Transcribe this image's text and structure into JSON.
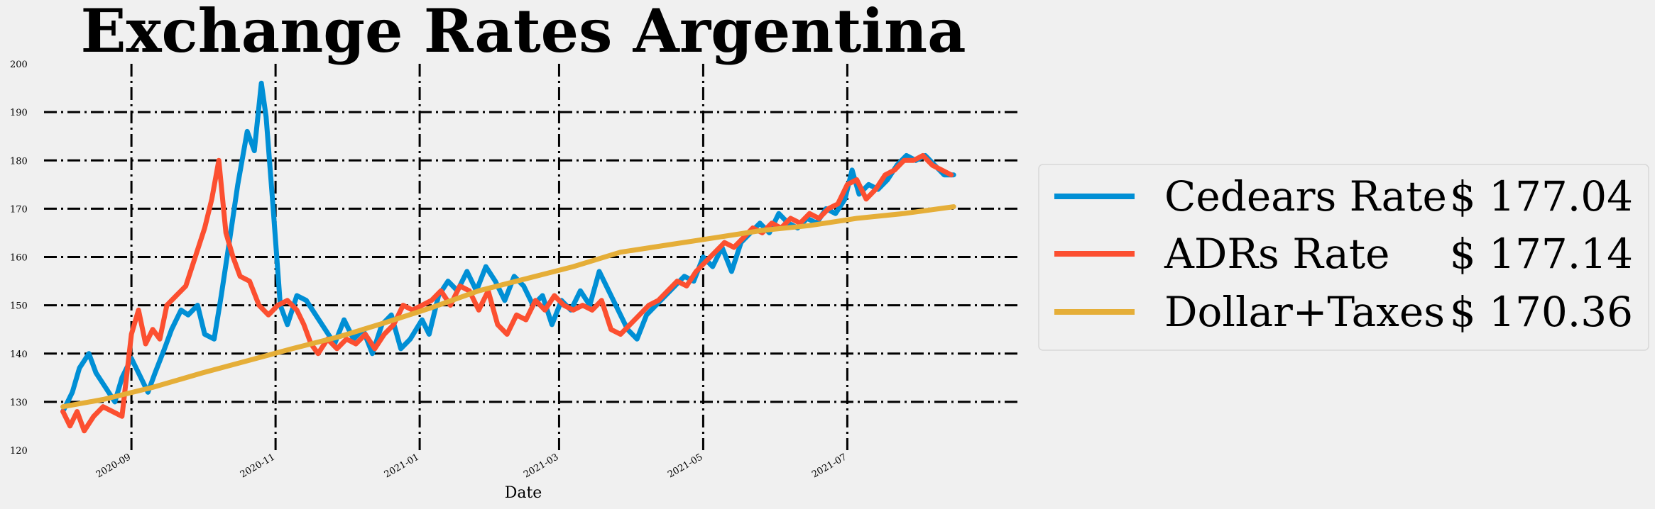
{
  "chart_data": {
    "type": "line",
    "title": "Exchange Rates Argentina",
    "xlabel": "Date",
    "ylabel": "",
    "ylim": [
      120,
      200
    ],
    "xlim": [
      "2020-07-26",
      "2021-09-11"
    ],
    "yticks": [
      120,
      130,
      140,
      150,
      160,
      170,
      180,
      190,
      200
    ],
    "xticks": [
      "2020-09",
      "2020-11",
      "2021-01",
      "2021-03",
      "2021-05",
      "2021-07"
    ],
    "grid": true,
    "legend_position": "right",
    "series": [
      {
        "name": "Cedears Rate",
        "legend_value": "$ 177.04",
        "color": "#008fd5",
        "points": [
          [
            "2020-08-03",
            128
          ],
          [
            "2020-08-07",
            132
          ],
          [
            "2020-08-10",
            137
          ],
          [
            "2020-08-14",
            140
          ],
          [
            "2020-08-17",
            136
          ],
          [
            "2020-08-21",
            133
          ],
          [
            "2020-08-25",
            130
          ],
          [
            "2020-08-28",
            135
          ],
          [
            "2020-09-01",
            139
          ],
          [
            "2020-09-04",
            136
          ],
          [
            "2020-09-08",
            132
          ],
          [
            "2020-09-11",
            136
          ],
          [
            "2020-09-15",
            141
          ],
          [
            "2020-09-18",
            145
          ],
          [
            "2020-09-22",
            149
          ],
          [
            "2020-09-25",
            148
          ],
          [
            "2020-09-29",
            150
          ],
          [
            "2020-10-02",
            144
          ],
          [
            "2020-10-06",
            143
          ],
          [
            "2020-10-09",
            152
          ],
          [
            "2020-10-13",
            165
          ],
          [
            "2020-10-16",
            175
          ],
          [
            "2020-10-20",
            186
          ],
          [
            "2020-10-23",
            182
          ],
          [
            "2020-10-26",
            196
          ],
          [
            "2020-10-28",
            189
          ],
          [
            "2020-10-31",
            170
          ],
          [
            "2020-11-03",
            150
          ],
          [
            "2020-11-06",
            146
          ],
          [
            "2020-11-10",
            152
          ],
          [
            "2020-11-14",
            151
          ],
          [
            "2020-11-18",
            148
          ],
          [
            "2020-11-22",
            145
          ],
          [
            "2020-11-26",
            142
          ],
          [
            "2020-11-30",
            147
          ],
          [
            "2020-12-04",
            143
          ],
          [
            "2020-12-08",
            145
          ],
          [
            "2020-12-12",
            140
          ],
          [
            "2020-12-16",
            146
          ],
          [
            "2020-12-20",
            148
          ],
          [
            "2020-12-24",
            141
          ],
          [
            "2020-12-28",
            143
          ],
          [
            "2021-01-02",
            147
          ],
          [
            "2021-01-05",
            144
          ],
          [
            "2021-01-09",
            152
          ],
          [
            "2021-01-13",
            155
          ],
          [
            "2021-01-17",
            153
          ],
          [
            "2021-01-21",
            157
          ],
          [
            "2021-01-25",
            153
          ],
          [
            "2021-01-29",
            158
          ],
          [
            "2021-02-02",
            155
          ],
          [
            "2021-02-06",
            151
          ],
          [
            "2021-02-10",
            156
          ],
          [
            "2021-02-14",
            154
          ],
          [
            "2021-02-18",
            150
          ],
          [
            "2021-02-22",
            152
          ],
          [
            "2021-02-26",
            146
          ],
          [
            "2021-03-02",
            151
          ],
          [
            "2021-03-06",
            149
          ],
          [
            "2021-03-10",
            153
          ],
          [
            "2021-03-14",
            150
          ],
          [
            "2021-03-18",
            157
          ],
          [
            "2021-03-22",
            153
          ],
          [
            "2021-03-26",
            149
          ],
          [
            "2021-03-30",
            145
          ],
          [
            "2021-04-03",
            143
          ],
          [
            "2021-04-07",
            148
          ],
          [
            "2021-04-11",
            150
          ],
          [
            "2021-04-15",
            152
          ],
          [
            "2021-04-19",
            154
          ],
          [
            "2021-04-23",
            156
          ],
          [
            "2021-04-27",
            155
          ],
          [
            "2021-05-01",
            160
          ],
          [
            "2021-05-05",
            158
          ],
          [
            "2021-05-09",
            162
          ],
          [
            "2021-05-13",
            157
          ],
          [
            "2021-05-17",
            163
          ],
          [
            "2021-05-21",
            165
          ],
          [
            "2021-05-25",
            167
          ],
          [
            "2021-05-29",
            165
          ],
          [
            "2021-06-02",
            169
          ],
          [
            "2021-06-06",
            167
          ],
          [
            "2021-06-10",
            166
          ],
          [
            "2021-06-14",
            168
          ],
          [
            "2021-06-18",
            167
          ],
          [
            "2021-06-22",
            170
          ],
          [
            "2021-06-26",
            169
          ],
          [
            "2021-06-30",
            172
          ],
          [
            "2021-07-03",
            178
          ],
          [
            "2021-07-06",
            173
          ],
          [
            "2021-07-10",
            175
          ],
          [
            "2021-07-14",
            174
          ],
          [
            "2021-07-18",
            176
          ],
          [
            "2021-07-22",
            179
          ],
          [
            "2021-07-26",
            181
          ],
          [
            "2021-07-30",
            180
          ],
          [
            "2021-08-03",
            181
          ],
          [
            "2021-08-07",
            179
          ],
          [
            "2021-08-11",
            177
          ],
          [
            "2021-08-15",
            177
          ]
        ]
      },
      {
        "name": "ADRs Rate",
        "legend_value": "$ 177.14",
        "color": "#fc4f30",
        "points": [
          [
            "2020-08-03",
            128
          ],
          [
            "2020-08-06",
            125
          ],
          [
            "2020-08-09",
            128
          ],
          [
            "2020-08-12",
            124
          ],
          [
            "2020-08-16",
            127
          ],
          [
            "2020-08-20",
            129
          ],
          [
            "2020-08-24",
            128
          ],
          [
            "2020-08-28",
            127
          ],
          [
            "2020-09-01",
            144
          ],
          [
            "2020-09-04",
            149
          ],
          [
            "2020-09-07",
            142
          ],
          [
            "2020-09-10",
            145
          ],
          [
            "2020-09-13",
            143
          ],
          [
            "2020-09-16",
            150
          ],
          [
            "2020-09-20",
            152
          ],
          [
            "2020-09-24",
            154
          ],
          [
            "2020-09-28",
            160
          ],
          [
            "2020-10-02",
            166
          ],
          [
            "2020-10-05",
            172
          ],
          [
            "2020-10-08",
            180
          ],
          [
            "2020-10-11",
            165
          ],
          [
            "2020-10-14",
            160
          ],
          [
            "2020-10-17",
            156
          ],
          [
            "2020-10-21",
            155
          ],
          [
            "2020-10-25",
            150
          ],
          [
            "2020-10-29",
            148
          ],
          [
            "2020-11-02",
            150
          ],
          [
            "2020-11-06",
            151
          ],
          [
            "2020-11-10",
            149
          ],
          [
            "2020-11-13",
            146
          ],
          [
            "2020-11-16",
            142
          ],
          [
            "2020-11-19",
            140
          ],
          [
            "2020-11-23",
            143
          ],
          [
            "2020-11-27",
            141
          ],
          [
            "2020-12-01",
            143
          ],
          [
            "2020-12-05",
            142
          ],
          [
            "2020-12-09",
            144
          ],
          [
            "2020-12-13",
            141
          ],
          [
            "2020-12-17",
            144
          ],
          [
            "2020-12-21",
            146
          ],
          [
            "2020-12-25",
            150
          ],
          [
            "2020-12-29",
            149
          ],
          [
            "2021-01-02",
            150
          ],
          [
            "2021-01-06",
            151
          ],
          [
            "2021-01-10",
            153
          ],
          [
            "2021-01-14",
            150
          ],
          [
            "2021-01-18",
            154
          ],
          [
            "2021-01-22",
            153
          ],
          [
            "2021-01-26",
            149
          ],
          [
            "2021-01-30",
            153
          ],
          [
            "2021-02-03",
            146
          ],
          [
            "2021-02-07",
            144
          ],
          [
            "2021-02-11",
            148
          ],
          [
            "2021-02-15",
            147
          ],
          [
            "2021-02-19",
            151
          ],
          [
            "2021-02-23",
            149
          ],
          [
            "2021-02-27",
            152
          ],
          [
            "2021-03-03",
            150
          ],
          [
            "2021-03-07",
            149
          ],
          [
            "2021-03-11",
            150
          ],
          [
            "2021-03-15",
            149
          ],
          [
            "2021-03-19",
            151
          ],
          [
            "2021-03-23",
            145
          ],
          [
            "2021-03-27",
            144
          ],
          [
            "2021-03-31",
            146
          ],
          [
            "2021-04-04",
            148
          ],
          [
            "2021-04-08",
            150
          ],
          [
            "2021-04-12",
            151
          ],
          [
            "2021-04-16",
            153
          ],
          [
            "2021-04-20",
            155
          ],
          [
            "2021-04-24",
            154
          ],
          [
            "2021-04-28",
            157
          ],
          [
            "2021-05-02",
            159
          ],
          [
            "2021-05-06",
            161
          ],
          [
            "2021-05-10",
            163
          ],
          [
            "2021-05-14",
            162
          ],
          [
            "2021-05-18",
            164
          ],
          [
            "2021-05-22",
            166
          ],
          [
            "2021-05-26",
            165
          ],
          [
            "2021-05-30",
            167
          ],
          [
            "2021-06-03",
            166
          ],
          [
            "2021-06-07",
            168
          ],
          [
            "2021-06-11",
            167
          ],
          [
            "2021-06-15",
            169
          ],
          [
            "2021-06-19",
            168
          ],
          [
            "2021-06-23",
            170
          ],
          [
            "2021-06-27",
            171
          ],
          [
            "2021-07-01",
            175
          ],
          [
            "2021-07-05",
            176
          ],
          [
            "2021-07-09",
            172
          ],
          [
            "2021-07-13",
            174
          ],
          [
            "2021-07-17",
            177
          ],
          [
            "2021-07-21",
            178
          ],
          [
            "2021-07-25",
            180
          ],
          [
            "2021-07-29",
            180
          ],
          [
            "2021-08-02",
            181
          ],
          [
            "2021-08-06",
            179
          ],
          [
            "2021-08-10",
            178
          ],
          [
            "2021-08-14",
            177
          ]
        ]
      },
      {
        "name": "Dollar+Taxes",
        "legend_value": "$ 170.36",
        "color": "#e5ae38",
        "points": [
          [
            "2020-08-03",
            129
          ],
          [
            "2020-08-20",
            130.5
          ],
          [
            "2020-09-10",
            133
          ],
          [
            "2020-10-01",
            136
          ],
          [
            "2020-10-20",
            138.5
          ],
          [
            "2020-11-08",
            141
          ],
          [
            "2020-11-28",
            143.5
          ],
          [
            "2020-12-18",
            146.5
          ],
          [
            "2021-01-06",
            149.5
          ],
          [
            "2021-01-26",
            153
          ],
          [
            "2021-02-15",
            155.5
          ],
          [
            "2021-03-07",
            158
          ],
          [
            "2021-03-27",
            161
          ],
          [
            "2021-04-16",
            162.5
          ],
          [
            "2021-05-06",
            164
          ],
          [
            "2021-05-26",
            165.5
          ],
          [
            "2021-06-15",
            166.5
          ],
          [
            "2021-07-05",
            168
          ],
          [
            "2021-07-25",
            169
          ],
          [
            "2021-08-15",
            170.4
          ]
        ]
      }
    ]
  }
}
